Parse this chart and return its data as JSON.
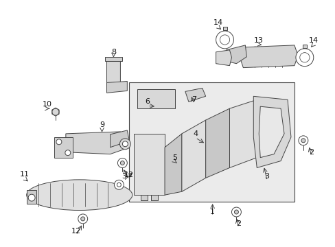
{
  "bg_color": "#ffffff",
  "line_color": "#444444",
  "font_size": 8,
  "fig_width": 4.89,
  "fig_height": 3.6,
  "dpi": 100
}
